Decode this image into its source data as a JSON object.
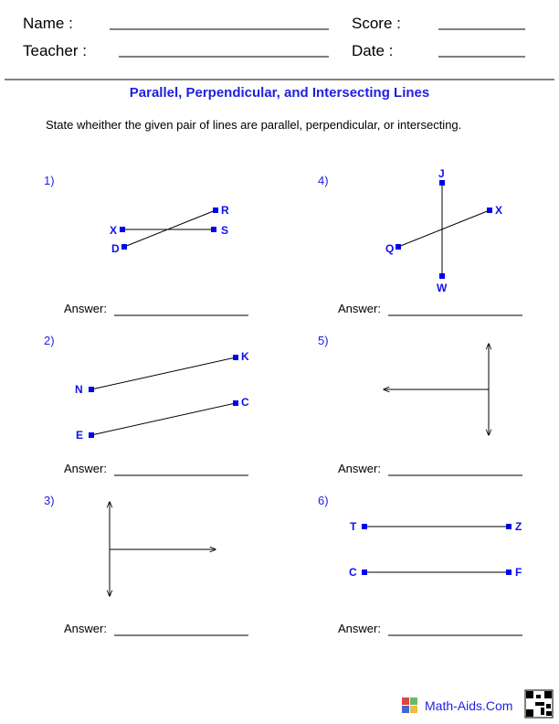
{
  "header": {
    "name_label": "Name :",
    "score_label": "Score :",
    "teacher_label": "Teacher :",
    "date_label": "Date :"
  },
  "title": "Parallel, Perpendicular, and Intersecting Lines",
  "instructions": "State wheither the given pair of lines are parallel, perpendicular, or intersecting.",
  "answer_label": "Answer:",
  "problems": [
    {
      "number": "1)",
      "points": [
        "X",
        "S",
        "D",
        "R"
      ]
    },
    {
      "number": "2)",
      "points": [
        "N",
        "K",
        "E",
        "C"
      ]
    },
    {
      "number": "3)",
      "points": []
    },
    {
      "number": "4)",
      "points": [
        "J",
        "W",
        "Q",
        "X"
      ]
    },
    {
      "number": "5)",
      "points": []
    },
    {
      "number": "6)",
      "points": [
        "T",
        "Z",
        "C",
        "F"
      ]
    }
  ],
  "footer": {
    "brand": "Math-Aids.Com"
  },
  "colors": {
    "accent": "#1f1fe0",
    "point": "#0000ee"
  }
}
